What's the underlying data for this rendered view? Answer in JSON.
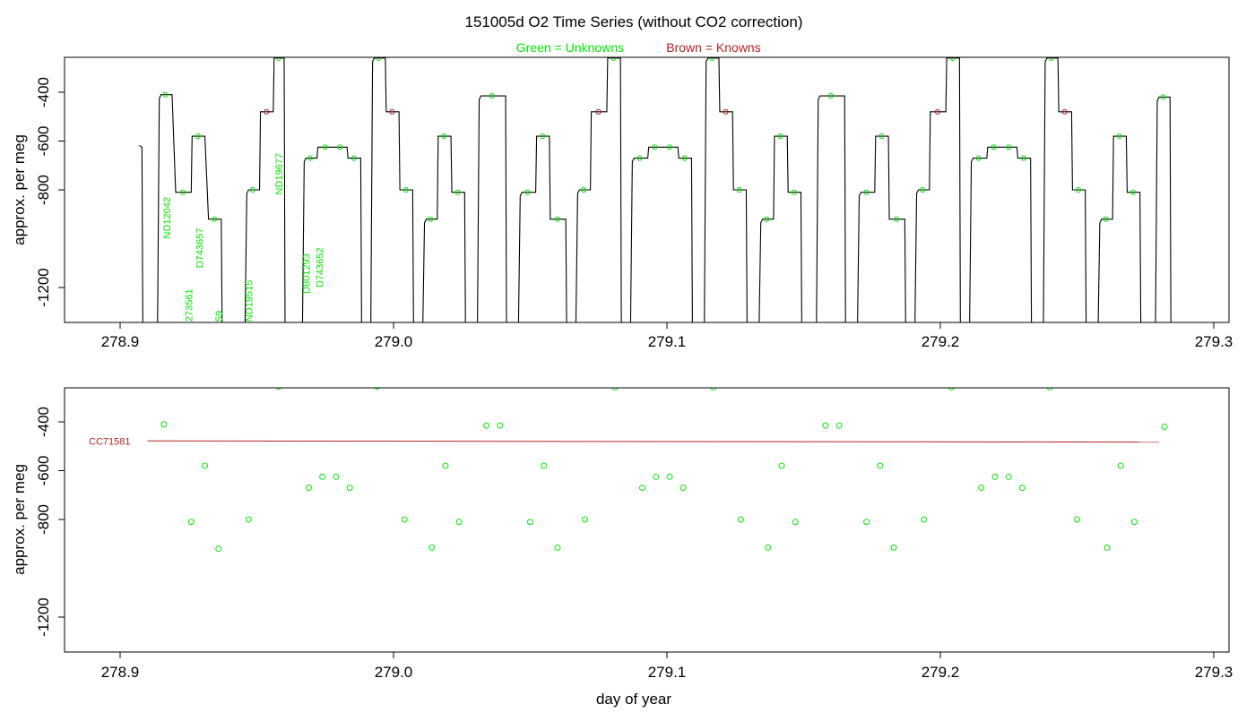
{
  "title": "151005d   O2 Time Series (without CO2 correction)",
  "legend": {
    "unknowns": "Green = Unknowns",
    "knowns": "Brown = Knowns"
  },
  "colors": {
    "unknown": "#00e600",
    "known": "#b22222",
    "trace": "#000000"
  },
  "chart_data": [
    {
      "type": "line",
      "ylabel": "approx. per meg",
      "xlim": [
        278.88,
        279.3
      ],
      "ylim": [
        -1350,
        -250
      ],
      "y_inverted": true,
      "x_ticks": [
        "278.9",
        "279.0",
        "279.1",
        "279.2",
        "279.3"
      ],
      "y_ticks": [
        "-400",
        "-600",
        "-800",
        "-1200"
      ],
      "steps": [
        {
          "x": [
            278.914,
            278.919
          ],
          "y": -410,
          "group": "unknown"
        },
        {
          "x": [
            278.92,
            278.926
          ],
          "y": -810,
          "group": "unknown"
        },
        {
          "x": [
            278.926,
            278.931
          ],
          "y": -580,
          "group": "unknown"
        },
        {
          "x": [
            278.932,
            278.937
          ],
          "y": -920,
          "group": "unknown"
        },
        {
          "x": [
            278.946,
            278.951
          ],
          "y": -800,
          "group": "unknown"
        },
        {
          "x": [
            278.951,
            278.956
          ],
          "y": -480,
          "group": "known"
        },
        {
          "x": [
            278.956,
            278.96
          ],
          "y": -260,
          "group": "unknown"
        },
        {
          "x": [
            278.967,
            278.972
          ],
          "y": -670,
          "group": "unknown"
        },
        {
          "x": [
            278.972,
            278.978
          ],
          "y": -625,
          "group": "unknown"
        },
        {
          "x": [
            278.978,
            278.983
          ],
          "y": -625,
          "group": "unknown"
        },
        {
          "x": [
            278.983,
            278.988
          ],
          "y": -670,
          "group": "unknown"
        },
        {
          "x": [
            278.992,
            278.997
          ],
          "y": -260,
          "group": "unknown"
        },
        {
          "x": [
            278.997,
            279.002
          ],
          "y": -480,
          "group": "known"
        },
        {
          "x": [
            279.002,
            279.007
          ],
          "y": -800,
          "group": "unknown"
        },
        {
          "x": [
            279.011,
            279.016
          ],
          "y": -920,
          "group": "unknown"
        },
        {
          "x": [
            279.016,
            279.021
          ],
          "y": -580,
          "group": "unknown"
        },
        {
          "x": [
            279.021,
            279.026
          ],
          "y": -810,
          "group": "unknown"
        },
        {
          "x": [
            279.031,
            279.041
          ],
          "y": -415,
          "group": "unknown"
        },
        {
          "x": [
            279.046,
            279.052
          ],
          "y": -810,
          "group": "unknown"
        },
        {
          "x": [
            279.052,
            279.057
          ],
          "y": -580,
          "group": "unknown"
        },
        {
          "x": [
            279.057,
            279.063
          ],
          "y": -920,
          "group": "unknown"
        },
        {
          "x": [
            279.067,
            279.072
          ],
          "y": -800,
          "group": "unknown"
        },
        {
          "x": [
            279.072,
            279.078
          ],
          "y": -480,
          "group": "known"
        },
        {
          "x": [
            279.078,
            279.083
          ],
          "y": -260,
          "group": "unknown"
        },
        {
          "x": [
            279.087,
            279.093
          ],
          "y": -670,
          "group": "unknown"
        },
        {
          "x": [
            279.093,
            279.098
          ],
          "y": -625,
          "group": "unknown"
        },
        {
          "x": [
            279.098,
            279.104
          ],
          "y": -625,
          "group": "unknown"
        },
        {
          "x": [
            279.104,
            279.109
          ],
          "y": -670,
          "group": "unknown"
        },
        {
          "x": [
            279.114,
            279.119
          ],
          "y": -260,
          "group": "unknown"
        },
        {
          "x": [
            279.119,
            279.124
          ],
          "y": -480,
          "group": "known"
        },
        {
          "x": [
            279.124,
            279.129
          ],
          "y": -800,
          "group": "unknown"
        },
        {
          "x": [
            279.134,
            279.139
          ],
          "y": -920,
          "group": "unknown"
        },
        {
          "x": [
            279.139,
            279.144
          ],
          "y": -580,
          "group": "unknown"
        },
        {
          "x": [
            279.144,
            279.149
          ],
          "y": -810,
          "group": "unknown"
        },
        {
          "x": [
            279.155,
            279.165
          ],
          "y": -415,
          "group": "unknown"
        },
        {
          "x": [
            279.17,
            279.176
          ],
          "y": -810,
          "group": "unknown"
        },
        {
          "x": [
            279.176,
            279.181
          ],
          "y": -580,
          "group": "unknown"
        },
        {
          "x": [
            279.181,
            279.187
          ],
          "y": -920,
          "group": "unknown"
        },
        {
          "x": [
            279.191,
            279.196
          ],
          "y": -800,
          "group": "unknown"
        },
        {
          "x": [
            279.196,
            279.202
          ],
          "y": -480,
          "group": "known"
        },
        {
          "x": [
            279.202,
            279.207
          ],
          "y": -260,
          "group": "unknown"
        },
        {
          "x": [
            279.211,
            279.217
          ],
          "y": -670,
          "group": "unknown"
        },
        {
          "x": [
            279.217,
            279.222
          ],
          "y": -625,
          "group": "unknown"
        },
        {
          "x": [
            279.222,
            279.228
          ],
          "y": -625,
          "group": "unknown"
        },
        {
          "x": [
            279.228,
            279.233
          ],
          "y": -670,
          "group": "unknown"
        },
        {
          "x": [
            279.238,
            279.243
          ],
          "y": -260,
          "group": "unknown"
        },
        {
          "x": [
            279.243,
            279.248
          ],
          "y": -480,
          "group": "known"
        },
        {
          "x": [
            279.248,
            279.253
          ],
          "y": -800,
          "group": "unknown"
        },
        {
          "x": [
            279.258,
            279.263
          ],
          "y": -920,
          "group": "unknown"
        },
        {
          "x": [
            279.263,
            279.268
          ],
          "y": -580,
          "group": "unknown"
        },
        {
          "x": [
            279.268,
            279.273
          ],
          "y": -810,
          "group": "unknown"
        },
        {
          "x": [
            279.279,
            279.284
          ],
          "y": -420,
          "group": "unknown"
        }
      ],
      "sample_labels": [
        {
          "text": "ND12042",
          "x": 278.917,
          "y": -1000
        },
        {
          "text": "D743657",
          "x": 278.929,
          "y": -1120
        },
        {
          "text": "273561",
          "x": 278.925,
          "y": -1340
        },
        {
          "text": "59",
          "x": 278.936,
          "y": -1340
        },
        {
          "text": "ND19515",
          "x": 278.947,
          "y": -1340
        },
        {
          "text": "ND19677",
          "x": 278.958,
          "y": -820
        },
        {
          "text": "D801293",
          "x": 278.968,
          "y": -1225
        },
        {
          "text": "D743652",
          "x": 278.973,
          "y": -1200
        }
      ]
    },
    {
      "type": "scatter",
      "xlabel": "day of year",
      "ylabel": "approx. per meg",
      "xlim": [
        278.88,
        279.3
      ],
      "ylim": [
        -1350,
        -250
      ],
      "y_inverted": true,
      "x_ticks": [
        "278.9",
        "279.0",
        "279.1",
        "279.2",
        "279.3"
      ],
      "y_ticks": [
        "-400",
        "-600",
        "-800",
        "-1200"
      ],
      "unknowns": [
        [
          278.916,
          -410
        ],
        [
          278.926,
          -810
        ],
        [
          278.931,
          -580
        ],
        [
          278.936,
          -920
        ],
        [
          278.947,
          -800
        ],
        [
          278.958,
          -255
        ],
        [
          278.969,
          -670
        ],
        [
          278.974,
          -625
        ],
        [
          278.979,
          -625
        ],
        [
          278.984,
          -670
        ],
        [
          278.994,
          -255
        ],
        [
          279.004,
          -800
        ],
        [
          279.014,
          -915
        ],
        [
          279.019,
          -580
        ],
        [
          279.024,
          -810
        ],
        [
          279.034,
          -415
        ],
        [
          279.039,
          -415
        ],
        [
          279.05,
          -810
        ],
        [
          279.055,
          -580
        ],
        [
          279.06,
          -915
        ],
        [
          279.07,
          -800
        ],
        [
          279.081,
          -258
        ],
        [
          279.091,
          -670
        ],
        [
          279.096,
          -625
        ],
        [
          279.101,
          -625
        ],
        [
          279.106,
          -670
        ],
        [
          279.117,
          -258
        ],
        [
          279.127,
          -800
        ],
        [
          279.137,
          -915
        ],
        [
          279.142,
          -580
        ],
        [
          279.147,
          -810
        ],
        [
          279.158,
          -415
        ],
        [
          279.163,
          -415
        ],
        [
          279.173,
          -810
        ],
        [
          279.178,
          -580
        ],
        [
          279.183,
          -915
        ],
        [
          279.194,
          -800
        ],
        [
          279.204,
          -258
        ],
        [
          279.215,
          -670
        ],
        [
          279.22,
          -625
        ],
        [
          279.225,
          -625
        ],
        [
          279.23,
          -670
        ],
        [
          279.24,
          -258
        ],
        [
          279.25,
          -800
        ],
        [
          279.261,
          -915
        ],
        [
          279.266,
          -580
        ],
        [
          279.271,
          -810
        ],
        [
          279.282,
          -420
        ]
      ],
      "known_series": {
        "name": "CC71581",
        "x": [
          278.91,
          279.28
        ],
        "y": [
          -478,
          -483
        ]
      }
    }
  ]
}
